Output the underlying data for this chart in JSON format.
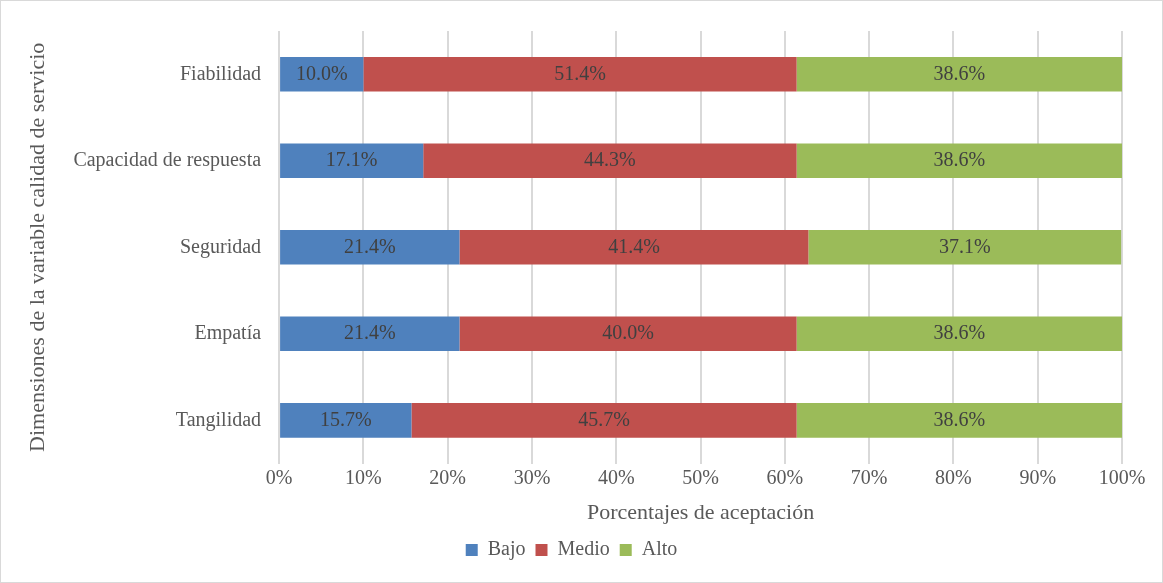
{
  "chart_data": {
    "type": "bar",
    "orientation": "horizontal",
    "stacked": true,
    "xlabel": "Porcentajes de aceptación",
    "ylabel": "Dimensiones de la variable calidad de servicio",
    "categories": [
      "Fiabilidad",
      "Capacidad de respuesta",
      "Seguridad",
      "Empatía",
      "Tangilidad"
    ],
    "series": [
      {
        "name": "Bajo",
        "color": "#4f81bd",
        "values": [
          10.0,
          17.1,
          21.4,
          21.4,
          15.7
        ],
        "value_labels": [
          "10.0%",
          "17.1%",
          "21.4%",
          "21.4%",
          "15.7%"
        ]
      },
      {
        "name": "Medio",
        "color": "#c0504d",
        "values": [
          51.4,
          44.3,
          41.4,
          40.0,
          45.7
        ],
        "value_labels": [
          "51.4%",
          "44.3%",
          "41.4%",
          "40.0%",
          "45.7%"
        ]
      },
      {
        "name": "Alto",
        "color": "#9bbb59",
        "values": [
          38.6,
          38.6,
          37.1,
          38.6,
          38.6
        ],
        "value_labels": [
          "38.6%",
          "38.6%",
          "37.1%",
          "38.6%",
          "38.6%"
        ]
      }
    ],
    "xlim": [
      0,
      100
    ],
    "xticks": [
      {
        "value": 0,
        "label": "0%"
      },
      {
        "value": 10,
        "label": "10%"
      },
      {
        "value": 20,
        "label": "20%"
      },
      {
        "value": 30,
        "label": "30%"
      },
      {
        "value": 40,
        "label": "40%"
      },
      {
        "value": 50,
        "label": "50%"
      },
      {
        "value": 60,
        "label": "60%"
      },
      {
        "value": 70,
        "label": "70%"
      },
      {
        "value": 80,
        "label": "80%"
      },
      {
        "value": 90,
        "label": "90%"
      },
      {
        "value": 100,
        "label": "100%"
      }
    ],
    "grid": "x",
    "legend": "bottom"
  }
}
